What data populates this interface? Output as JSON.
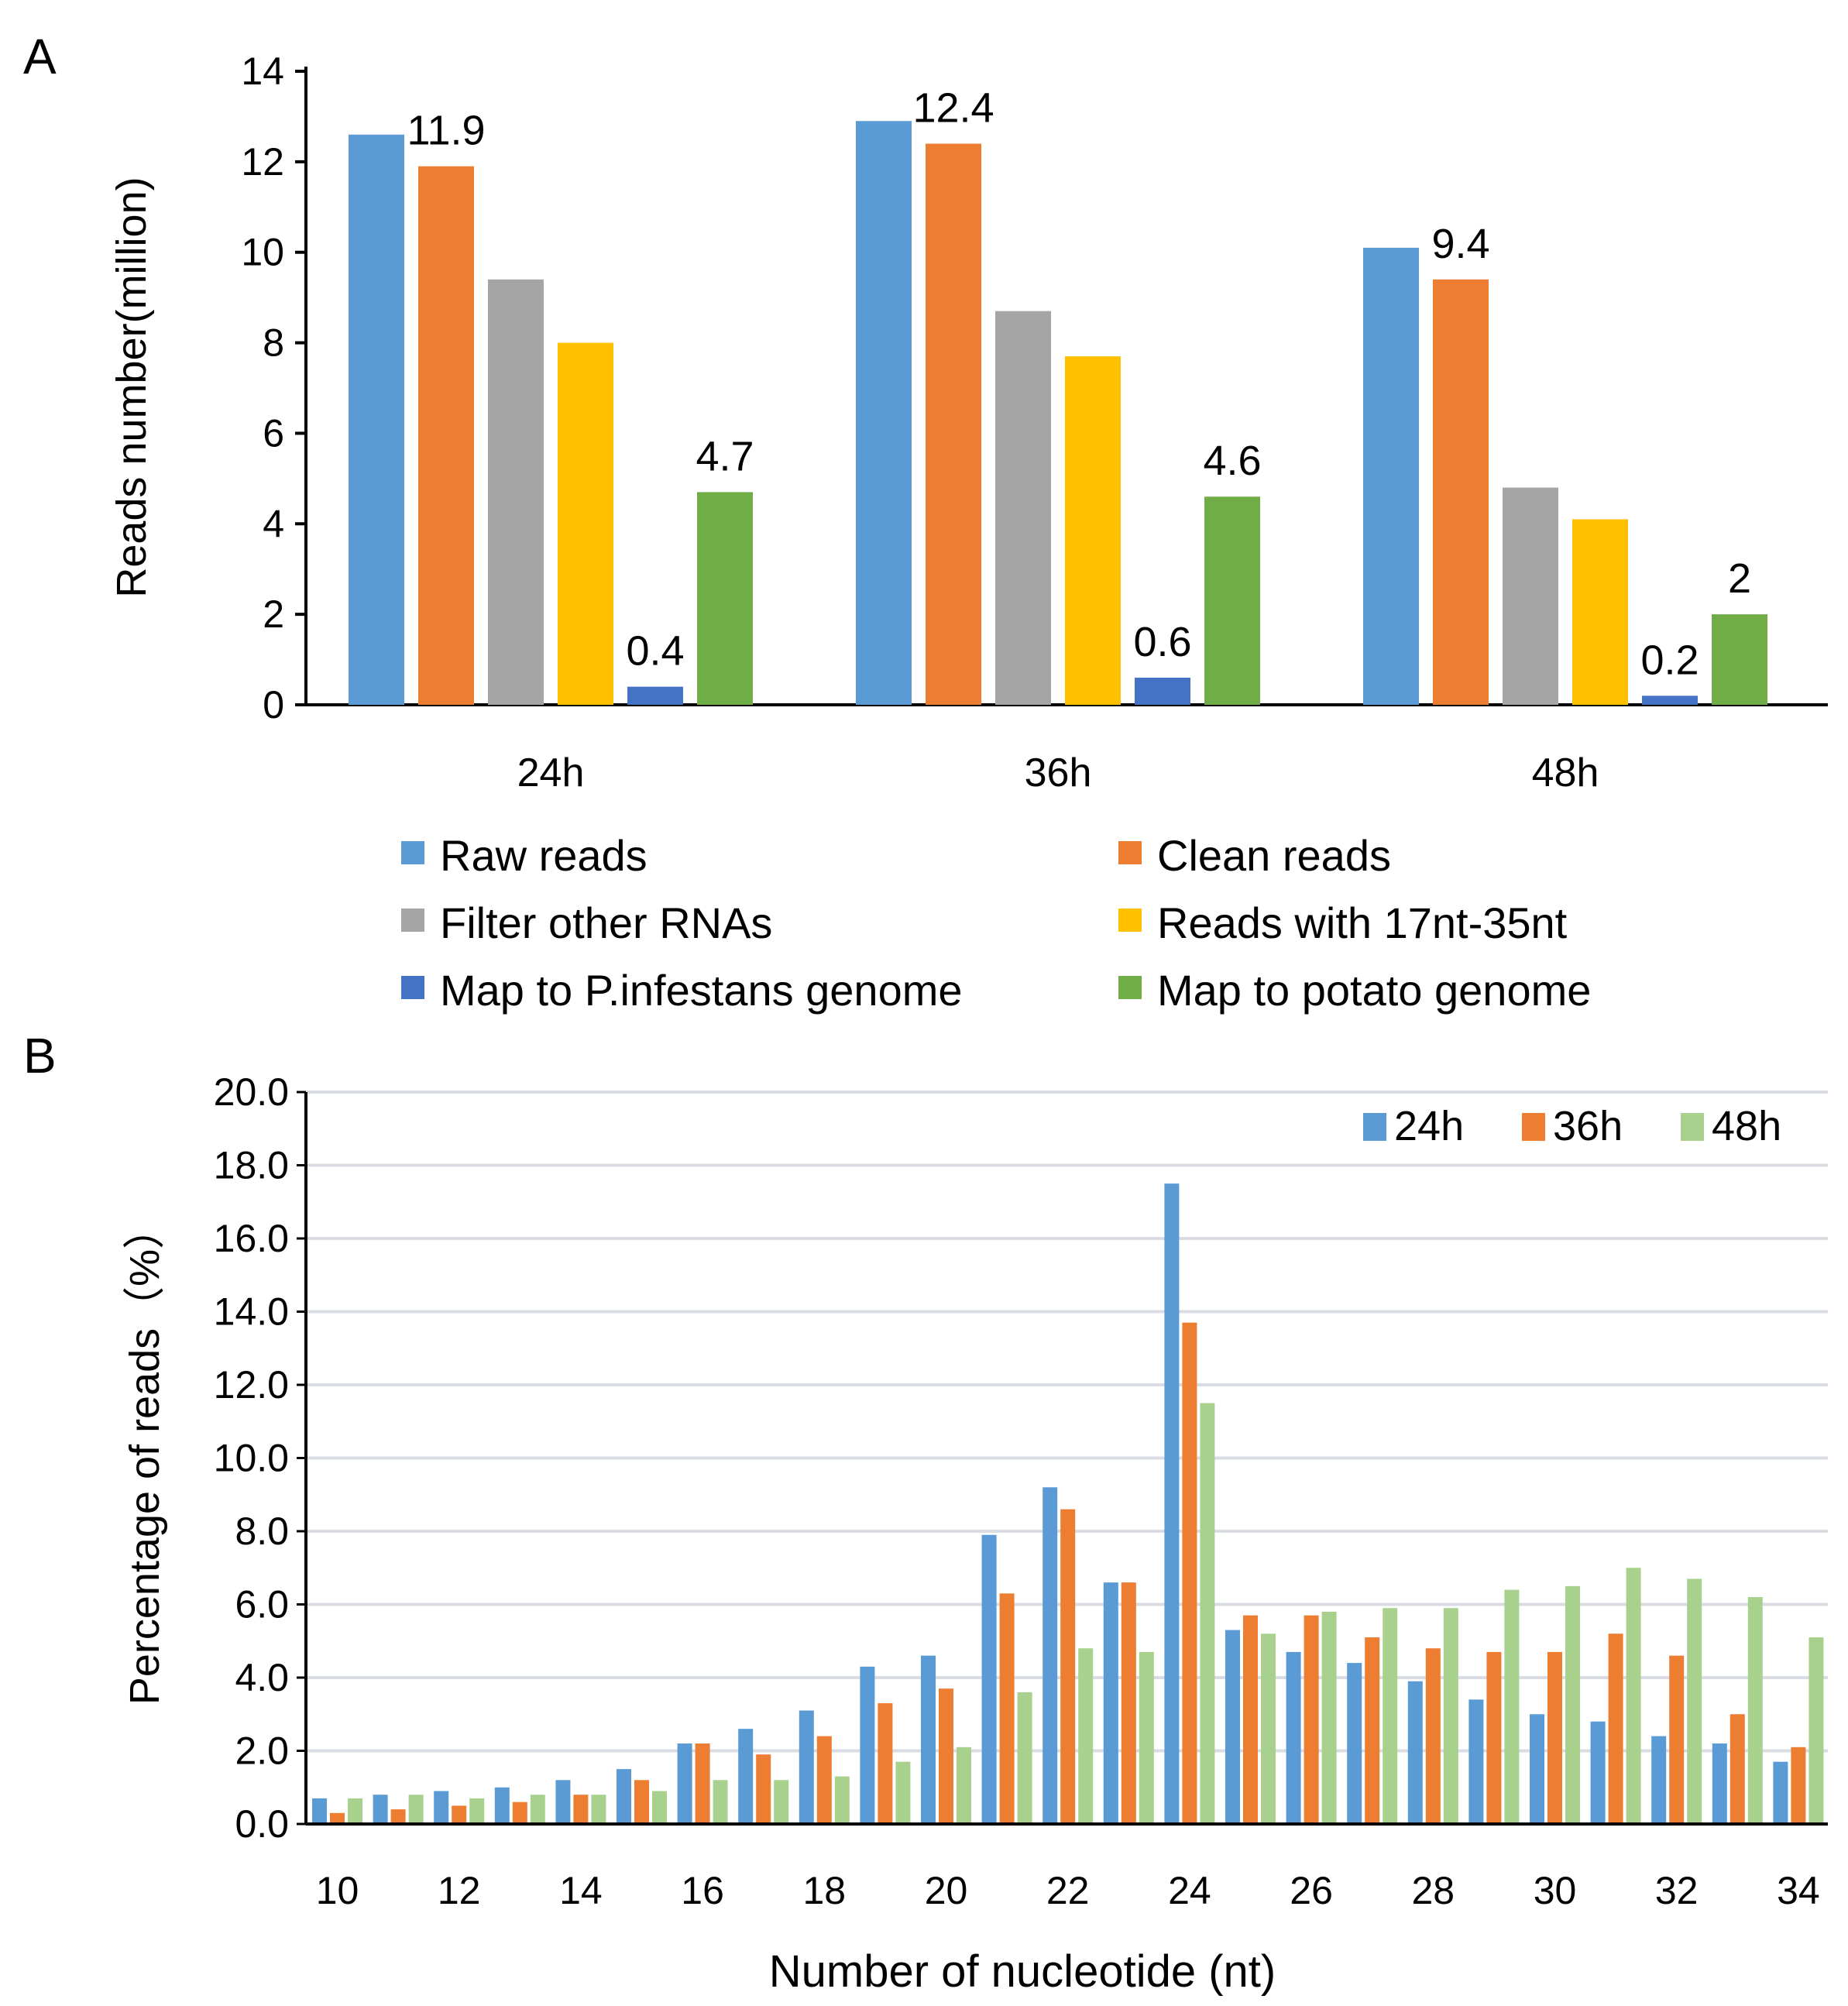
{
  "chart_data": [
    {
      "panel": "A",
      "type": "bar",
      "ylabel": "Reads number(million)",
      "xlabel": "",
      "ylim": [
        0,
        14
      ],
      "yticks": [
        "0",
        "2",
        "4",
        "6",
        "8",
        "10",
        "12",
        "14"
      ],
      "categories": [
        "24h",
        "36h",
        "48h"
      ],
      "series": [
        {
          "name": "Raw reads",
          "color": "#5B9BD5",
          "values": [
            12.6,
            12.9,
            10.1
          ],
          "labels": [
            "",
            "",
            ""
          ]
        },
        {
          "name": "Clean reads",
          "color": "#ED7D31",
          "values": [
            11.9,
            12.4,
            9.4
          ],
          "labels": [
            "11.9",
            "12.4",
            "9.4"
          ]
        },
        {
          "name": "Filter other RNAs",
          "color": "#A5A5A5",
          "values": [
            9.4,
            8.7,
            4.8
          ],
          "labels": [
            "",
            "",
            ""
          ]
        },
        {
          "name": "Reads with 17nt-35nt",
          "color": "#FFC000",
          "values": [
            8.0,
            7.7,
            4.1
          ],
          "labels": [
            "",
            "",
            ""
          ]
        },
        {
          "name": "Map to P.infestans genome",
          "color": "#4472C4",
          "values": [
            0.4,
            0.6,
            0.2
          ],
          "labels": [
            "0.4",
            "0.6",
            "0.2"
          ]
        },
        {
          "name": "Map to potato genome",
          "color": "#70AD47",
          "values": [
            4.7,
            4.6,
            2.0
          ],
          "labels": [
            "4.7",
            "4.6",
            "2"
          ]
        }
      ]
    },
    {
      "panel": "B",
      "type": "bar",
      "ylabel": "Percentage of reads（%）",
      "xlabel": "Number of nucleotide (nt)",
      "ylim": [
        0,
        20
      ],
      "yticks": [
        "0.0",
        "2.0",
        "4.0",
        "6.0",
        "8.0",
        "10.0",
        "12.0",
        "14.0",
        "16.0",
        "18.0",
        "20.0"
      ],
      "x": [
        10,
        11,
        12,
        13,
        14,
        15,
        16,
        17,
        18,
        19,
        20,
        21,
        22,
        23,
        24,
        25,
        26,
        27,
        28,
        29,
        30,
        31,
        32,
        33,
        34
      ],
      "xtick_labels": [
        "10",
        "12",
        "14",
        "16",
        "18",
        "20",
        "22",
        "24",
        "26",
        "28",
        "30",
        "32",
        "34"
      ],
      "series": [
        {
          "name": "24h",
          "color": "#5B9BD5",
          "values": [
            0.7,
            0.8,
            0.9,
            1.0,
            1.2,
            1.5,
            2.2,
            2.6,
            3.1,
            4.3,
            4.6,
            7.9,
            9.2,
            6.6,
            17.5,
            5.3,
            4.7,
            4.4,
            3.9,
            3.4,
            3.0,
            2.8,
            2.4,
            2.2,
            1.7
          ]
        },
        {
          "name": "36h",
          "color": "#ED7D31",
          "values": [
            0.3,
            0.4,
            0.5,
            0.6,
            0.8,
            1.2,
            2.2,
            1.9,
            2.4,
            3.3,
            3.7,
            6.3,
            8.6,
            6.6,
            13.7,
            5.7,
            5.7,
            5.1,
            4.8,
            4.7,
            4.7,
            5.2,
            4.6,
            3.0,
            2.1
          ]
        },
        {
          "name": "48h",
          "color": "#A9D18E",
          "values": [
            0.7,
            0.8,
            0.7,
            0.8,
            0.8,
            0.9,
            1.2,
            1.2,
            1.3,
            1.7,
            2.1,
            3.6,
            4.8,
            4.7,
            11.5,
            5.2,
            5.8,
            5.9,
            5.9,
            6.4,
            6.5,
            7.0,
            6.7,
            6.2,
            5.1
          ]
        }
      ]
    }
  ],
  "labels": {
    "panel_a": "A",
    "panel_b": "B"
  }
}
